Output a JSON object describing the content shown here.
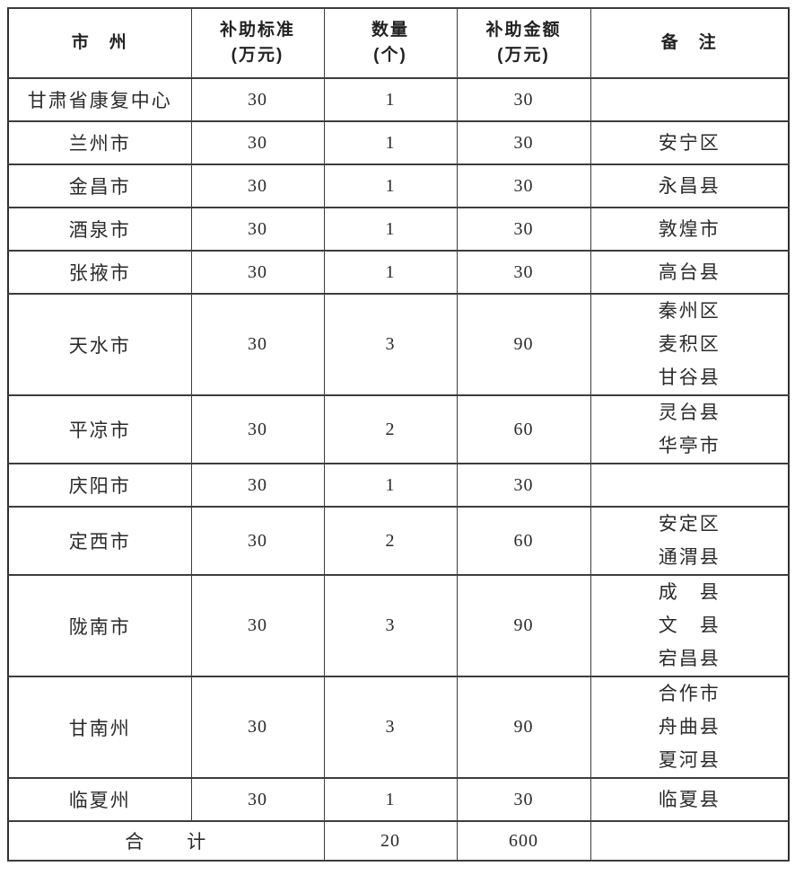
{
  "colors": {
    "background": "#ffffff",
    "border": "#3d3d3d",
    "text": "#2b2b2b"
  },
  "table": {
    "columns": [
      {
        "label": "市　州",
        "unit": ""
      },
      {
        "label": "补助标准",
        "unit": "(万元)"
      },
      {
        "label": "数量",
        "unit": "(个)"
      },
      {
        "label": "补助金额",
        "unit": "(万元)"
      },
      {
        "label": "备　注",
        "unit": ""
      }
    ],
    "rows": [
      {
        "region": "甘肃省康复中心",
        "standard": "30",
        "count": "1",
        "amount": "30",
        "remarks": []
      },
      {
        "region": "兰州市",
        "standard": "30",
        "count": "1",
        "amount": "30",
        "remarks": [
          "安宁区"
        ]
      },
      {
        "region": "金昌市",
        "standard": "30",
        "count": "1",
        "amount": "30",
        "remarks": [
          "永昌县"
        ]
      },
      {
        "region": "酒泉市",
        "standard": "30",
        "count": "1",
        "amount": "30",
        "remarks": [
          "敦煌市"
        ]
      },
      {
        "region": "张掖市",
        "standard": "30",
        "count": "1",
        "amount": "30",
        "remarks": [
          "高台县"
        ]
      },
      {
        "region": "天水市",
        "standard": "30",
        "count": "3",
        "amount": "90",
        "remarks": [
          "秦州区",
          "麦积区",
          "甘谷县"
        ]
      },
      {
        "region": "平凉市",
        "standard": "30",
        "count": "2",
        "amount": "60",
        "remarks": [
          "灵台县",
          "华亭市"
        ]
      },
      {
        "region": "庆阳市",
        "standard": "30",
        "count": "1",
        "amount": "30",
        "remarks": []
      },
      {
        "region": "定西市",
        "standard": "30",
        "count": "2",
        "amount": "60",
        "remarks": [
          "安定区",
          "通渭县"
        ]
      },
      {
        "region": "陇南市",
        "standard": "30",
        "count": "3",
        "amount": "90",
        "remarks": [
          "成　县",
          "文　县",
          "宕昌县"
        ]
      },
      {
        "region": "甘南州",
        "standard": "30",
        "count": "3",
        "amount": "90",
        "remarks": [
          "合作市",
          "舟曲县",
          "夏河县"
        ]
      },
      {
        "region": "临夏州",
        "standard": "30",
        "count": "1",
        "amount": "30",
        "remarks": [
          "临夏县"
        ]
      }
    ],
    "total": {
      "label": "合　　计",
      "count": "20",
      "amount": "600",
      "remark": ""
    }
  }
}
